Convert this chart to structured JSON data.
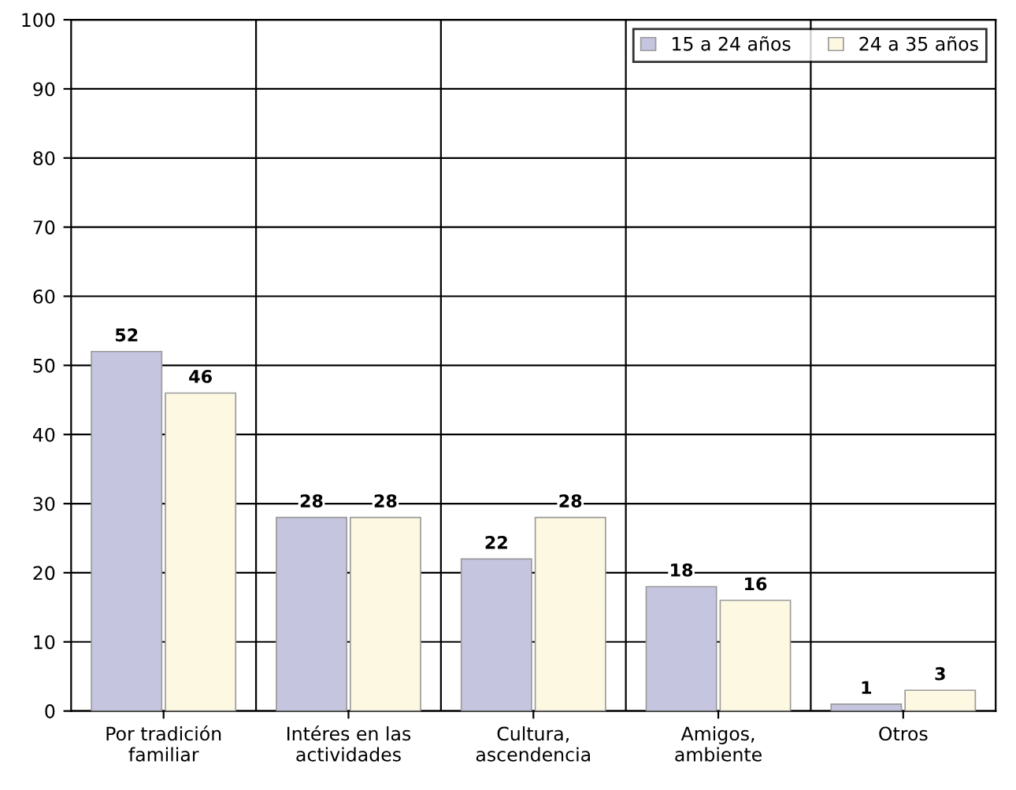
{
  "chart_data": {
    "type": "bar",
    "categories": [
      "Por tradición\nfamiliar",
      "Intéres en las\nactividades",
      "Cultura,\nascendencia",
      "Amigos,\nambiente",
      "Otros"
    ],
    "series": [
      {
        "name": "15 a 24 años",
        "color": "#c5c5e0",
        "values": [
          52,
          28,
          22,
          18,
          1
        ]
      },
      {
        "name": "24 a 35 años",
        "color": "#fcf8e1",
        "values": [
          46,
          28,
          28,
          16,
          3
        ]
      }
    ],
    "ylim": [
      0,
      100
    ],
    "yticks": [
      0,
      10,
      20,
      30,
      40,
      50,
      60,
      70,
      80,
      90,
      100
    ],
    "grid": true,
    "legend": "top right",
    "data_labels": true
  }
}
